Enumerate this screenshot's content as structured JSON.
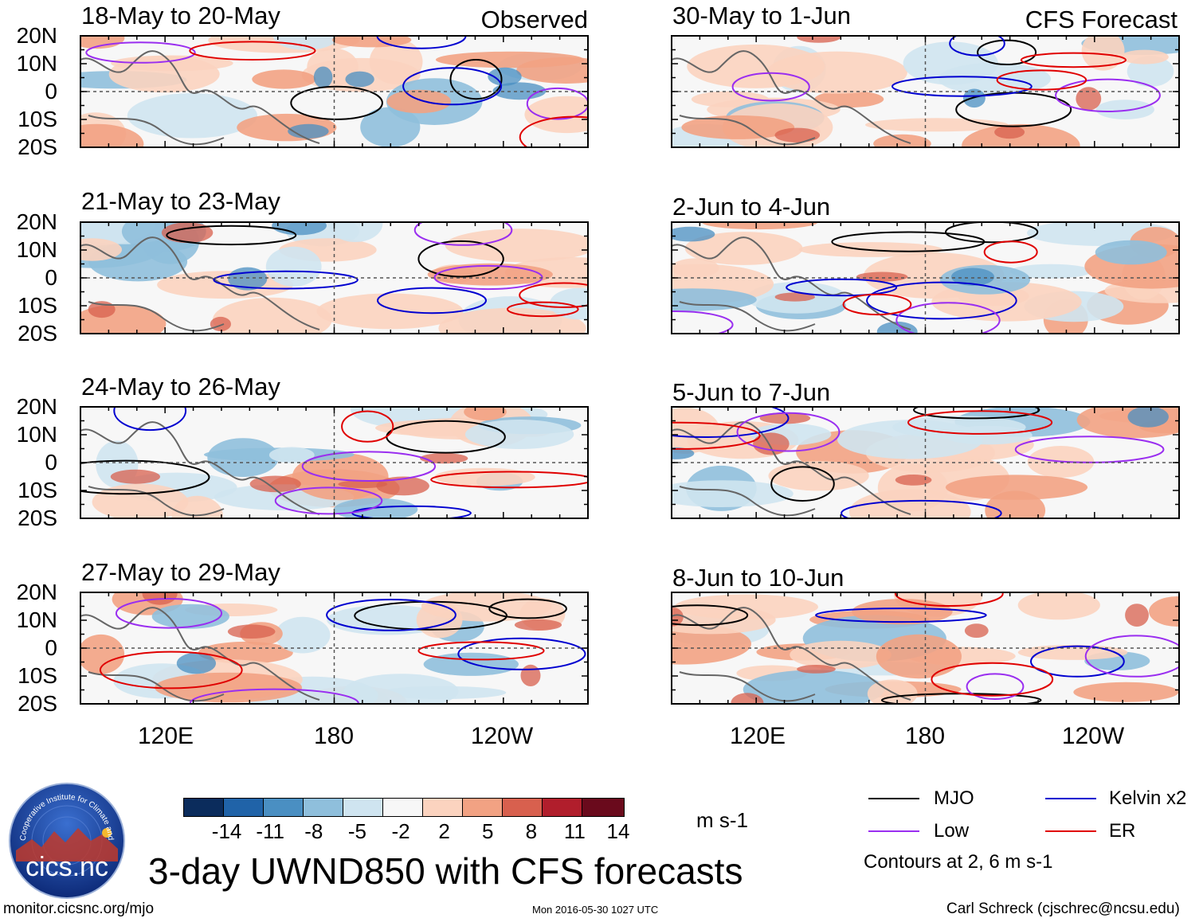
{
  "chart_data": {
    "type": "heatmap",
    "title": "3-day UWND850 with CFS forecasts",
    "variable": "UWND850",
    "units": "m s-1",
    "x_axis": {
      "ticks": [
        "120E",
        "180",
        "120W"
      ],
      "range": [
        "90E",
        "90W"
      ]
    },
    "y_axis": {
      "ticks": [
        "20N",
        "10N",
        "0",
        "10S",
        "20S"
      ],
      "range": [
        "20S",
        "20N"
      ]
    },
    "columns": [
      {
        "header": "Observed",
        "panels": [
          "18-May to 20-May",
          "21-May to 23-May",
          "24-May to 26-May",
          "27-May to 29-May"
        ]
      },
      {
        "header": "CFS Forecast",
        "panels": [
          "30-May to 1-Jun",
          "2-Jun to 4-Jun",
          "5-Jun to 7-Jun",
          "8-Jun to 10-Jun"
        ]
      }
    ],
    "colorbar": {
      "levels": [
        "-14",
        "-11",
        "-8",
        "-5",
        "-2",
        "2",
        "5",
        "8",
        "11",
        "14"
      ],
      "colors": [
        "#0b2c5c",
        "#2063a8",
        "#4a8fc2",
        "#8fbfdc",
        "#cfe4f0",
        "#f7f7f7",
        "#fbd3bf",
        "#f2a283",
        "#d8604e",
        "#b11e2c",
        "#6a0a1c"
      ]
    },
    "contours": {
      "legend": [
        {
          "label": "MJO",
          "color": "#000000"
        },
        {
          "label": "Kelvin x2",
          "color": "#0000d0"
        },
        {
          "label": "Low",
          "color": "#9a2ef0"
        },
        {
          "label": "ER",
          "color": "#e00000"
        }
      ],
      "note": "Contours at 2, 6 m s-1"
    }
  },
  "footer": {
    "logo_text": "cics.nc",
    "logo_ring": "Cooperative Institute for Climate and Satellites",
    "url": "monitor.cicsnc.org/mjo",
    "timestamp": "Mon 2016-05-30 1027 UTC",
    "credit": "Carl Schreck (cjschrec@ncsu.edu)"
  }
}
